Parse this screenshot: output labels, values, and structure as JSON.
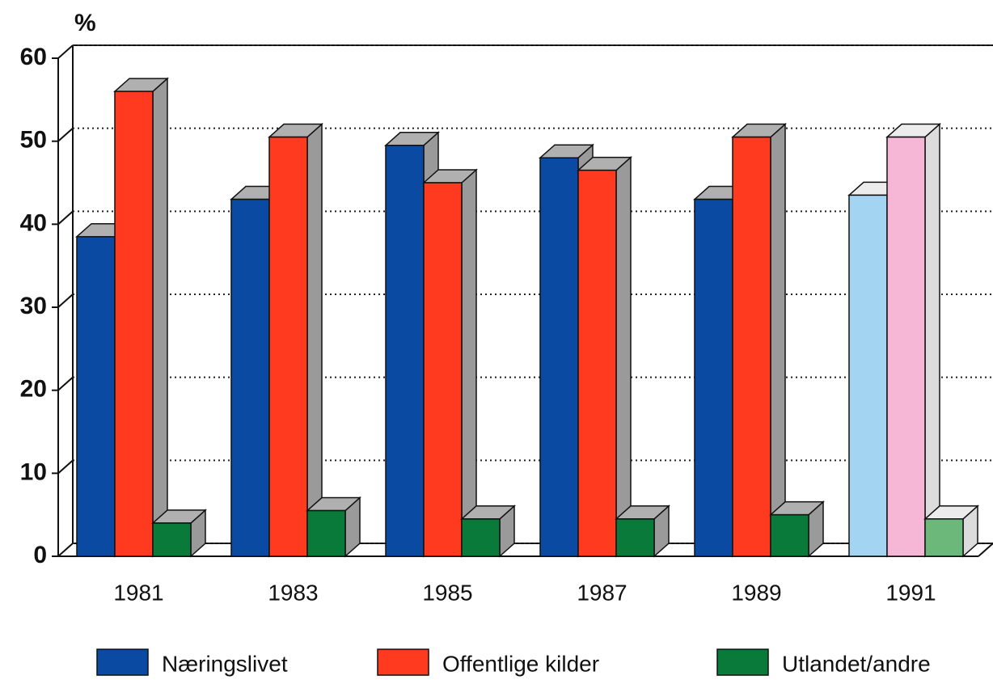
{
  "chart_data": {
    "type": "bar3d",
    "y_unit_label": "%",
    "categories": [
      "1981",
      "1983",
      "1985",
      "1987",
      "1989",
      "1991"
    ],
    "series": [
      {
        "name": "Næringslivet",
        "color": "#0b4aa2",
        "colors": [
          "#0b4aa2",
          "#0b4aa2",
          "#0b4aa2",
          "#0b4aa2",
          "#0b4aa2",
          "#a3d4f2"
        ],
        "values": [
          38.5,
          43,
          49.5,
          48,
          43,
          43.5
        ]
      },
      {
        "name": "Offentlige kilder",
        "color": "#ff3a1f",
        "colors": [
          "#ff3a1f",
          "#ff3a1f",
          "#ff3a1f",
          "#ff3a1f",
          "#ff3a1f",
          "#f6b6d6"
        ],
        "values": [
          56,
          50.5,
          45,
          46.5,
          50.5,
          50.5
        ]
      },
      {
        "name": "Utlandet/andre",
        "color": "#0a7a3a",
        "colors": [
          "#0a7a3a",
          "#0a7a3a",
          "#0a7a3a",
          "#0a7a3a",
          "#0a7a3a",
          "#6cb87a"
        ],
        "values": [
          4,
          5.5,
          4.5,
          4.5,
          5,
          4.5
        ]
      }
    ],
    "ylim": [
      0,
      60
    ],
    "yticks": [
      0,
      10,
      20,
      30,
      40,
      50,
      60
    ],
    "grid": true,
    "legend": "bottom"
  }
}
